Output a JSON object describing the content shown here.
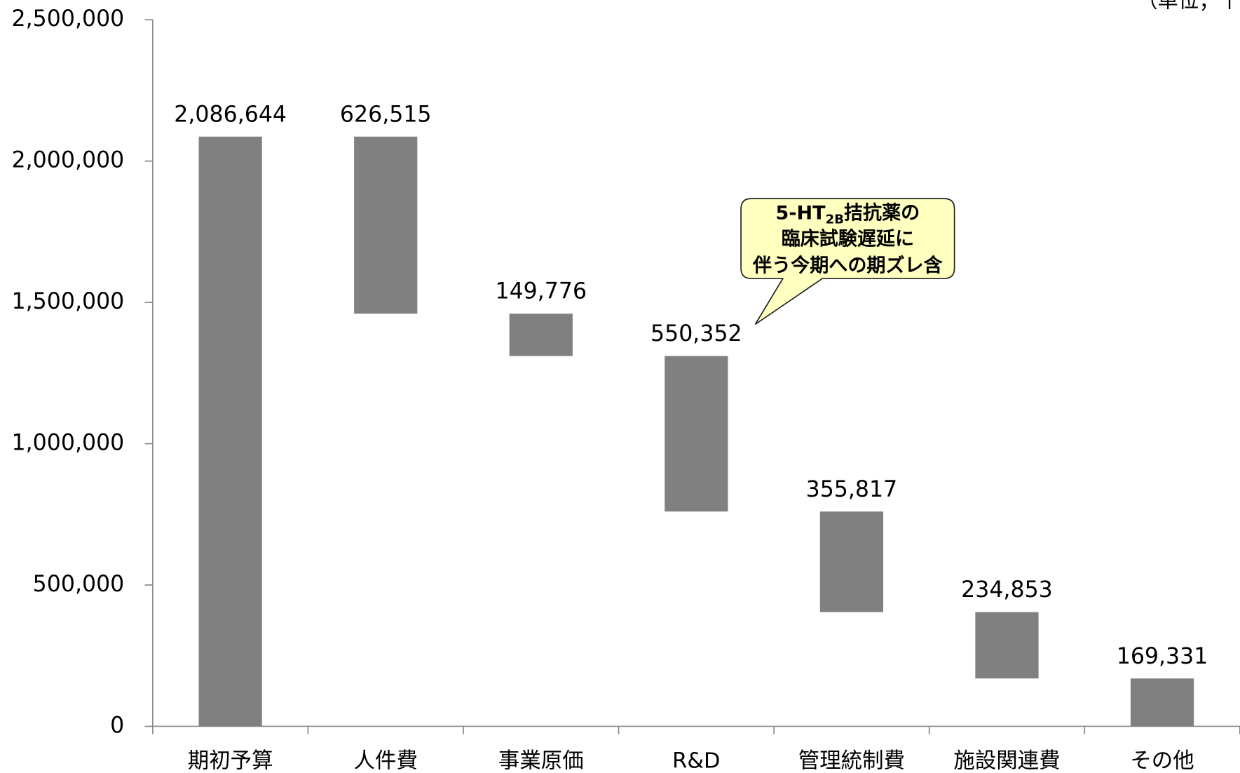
{
  "chart_data": {
    "type": "waterfall",
    "unit_note": "（単位；千",
    "categories": [
      "期初予算",
      "人件費",
      "事業原価",
      "R&D",
      "管理統制費",
      "施設関連費",
      "その他"
    ],
    "values": [
      2086644,
      626515,
      149776,
      550352,
      355817,
      234853,
      169331
    ],
    "value_labels": [
      "2,086,644",
      "626,515",
      "149,776",
      "550,352",
      "355,817",
      "234,853",
      "169,331"
    ],
    "color": "#808080",
    "ylim": [
      0,
      2500000
    ],
    "yticks": [
      0,
      {
        "value": 500000,
        "label": "500,000"
      },
      {
        "value": 1000000,
        "label": "1,000,000"
      },
      {
        "value": 1500000,
        "label": "1,500,000"
      },
      {
        "value": 2000000,
        "label": "2,000,000"
      },
      {
        "value": 2500000,
        "label": "2,500,000"
      }
    ],
    "annotation": {
      "prefix": "5-HT",
      "subscript": "2B",
      "rest": "拮抗薬の",
      "lines": [
        "臨床試験遅延に",
        "伴う今期への期ズレ含"
      ]
    }
  }
}
